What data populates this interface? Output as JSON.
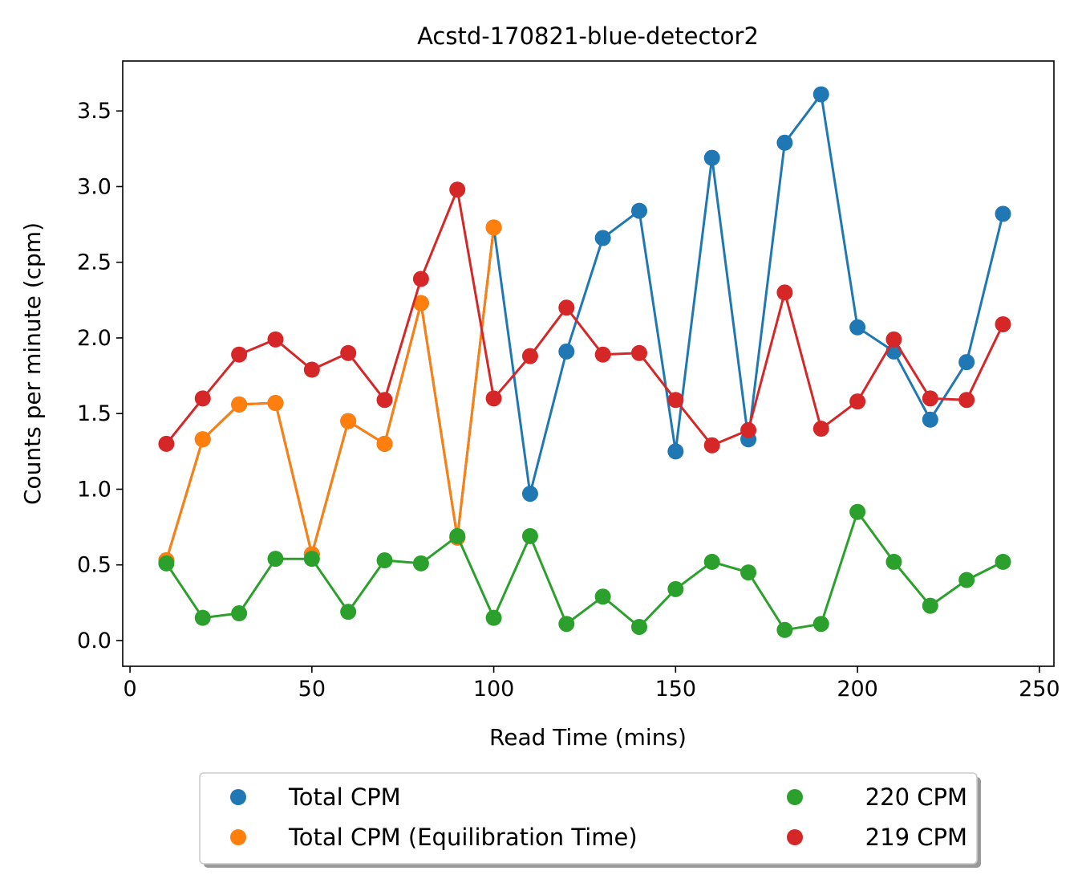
{
  "chart_data": {
    "type": "line",
    "title": "Acstd-170821-blue-detector2",
    "xlabel": "Read Time (mins)",
    "ylabel": "Counts per minute (cpm)",
    "xlim": [
      -2,
      254
    ],
    "ylim": [
      -0.17,
      3.83
    ],
    "xticks": [
      0,
      50,
      100,
      150,
      200,
      250
    ],
    "xtick_labels": [
      "0",
      "50",
      "100",
      "150",
      "200",
      "250"
    ],
    "yticks": [
      0.0,
      0.5,
      1.0,
      1.5,
      2.0,
      2.5,
      3.0,
      3.5
    ],
    "ytick_labels": [
      "0.0",
      "0.5",
      "1.0",
      "1.5",
      "2.0",
      "2.5",
      "3.0",
      "3.5"
    ],
    "grid": false,
    "legend_position": "bottom-center",
    "legend": [
      {
        "label": "Total CPM",
        "series": 0
      },
      {
        "label": "Total CPM (Equilibration Time)",
        "series": 1
      },
      {
        "label": "220 CPM",
        "series": 2
      },
      {
        "label": "219 CPM",
        "series": 3
      }
    ],
    "series": [
      {
        "name": "Total CPM",
        "color": "#1f77b4",
        "x": [
          10,
          20,
          30,
          40,
          50,
          60,
          70,
          80,
          90,
          100,
          110,
          120,
          130,
          140,
          150,
          160,
          170,
          180,
          190,
          200,
          210,
          220,
          230,
          240
        ],
        "y": [
          0.53,
          1.33,
          1.56,
          1.57,
          0.57,
          1.45,
          1.3,
          2.23,
          0.68,
          2.73,
          0.97,
          1.91,
          2.66,
          2.84,
          1.25,
          3.19,
          1.33,
          3.29,
          3.61,
          2.07,
          1.91,
          1.46,
          1.84,
          2.82
        ]
      },
      {
        "name": "Total CPM (Equilibration Time)",
        "color": "#ff7f0e",
        "x": [
          10,
          20,
          30,
          40,
          50,
          60,
          70,
          80,
          90,
          100
        ],
        "y": [
          0.53,
          1.33,
          1.56,
          1.57,
          0.57,
          1.45,
          1.3,
          2.23,
          0.68,
          2.73
        ]
      },
      {
        "name": "220 CPM",
        "color": "#2ca02c",
        "x": [
          10,
          20,
          30,
          40,
          50,
          60,
          70,
          80,
          90,
          100,
          110,
          120,
          130,
          140,
          150,
          160,
          170,
          180,
          190,
          200,
          210,
          220,
          230,
          240
        ],
        "y": [
          0.51,
          0.15,
          0.18,
          0.54,
          0.54,
          0.19,
          0.53,
          0.51,
          0.69,
          0.15,
          0.69,
          0.11,
          0.29,
          0.09,
          0.34,
          0.52,
          0.45,
          0.07,
          0.11,
          0.85,
          0.52,
          0.23,
          0.4,
          0.52
        ]
      },
      {
        "name": "219 CPM",
        "color": "#d62728",
        "x": [
          10,
          20,
          30,
          40,
          50,
          60,
          70,
          80,
          90,
          100,
          110,
          120,
          130,
          140,
          150,
          160,
          170,
          180,
          190,
          200,
          210,
          220,
          230,
          240
        ],
        "y": [
          1.3,
          1.6,
          1.89,
          1.99,
          1.79,
          1.9,
          1.59,
          2.39,
          2.98,
          1.6,
          1.88,
          2.2,
          1.89,
          1.9,
          1.59,
          1.29,
          1.39,
          2.3,
          1.4,
          1.58,
          1.99,
          1.6,
          1.59,
          2.09
        ]
      }
    ]
  }
}
